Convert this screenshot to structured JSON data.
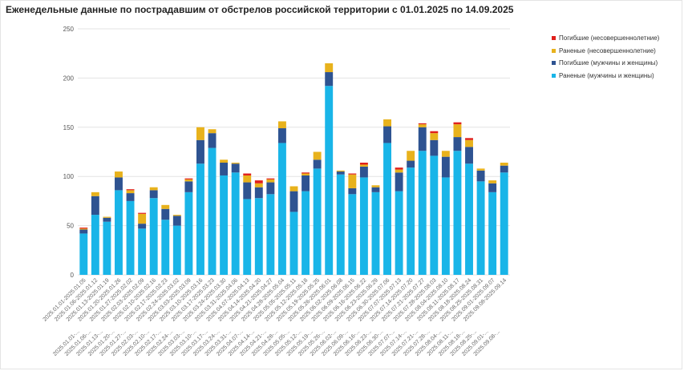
{
  "chart_data": {
    "type": "bar",
    "stacked": true,
    "title": "Еженедельные данные по пострадавшим от обстрелов российской территории с 01.01.2025 по 14.09.2025",
    "xlabel": "",
    "ylabel": "",
    "ylim": [
      0,
      250
    ],
    "yticks": [
      0,
      50,
      100,
      150,
      200,
      250
    ],
    "grid": true,
    "legend_position": "top-right",
    "categories": [
      "2025.01.01-2025.01.05",
      "2025.01.06-2025.01.12",
      "2025.01.13-2025.01.19",
      "2025.01.20-2025.01.26",
      "2025.01.27-2025.02.02",
      "2025.02.03-2025.02.09",
      "2025.02.10-2025.02.16",
      "2025.02.17-2025.02.23",
      "2025.02.24-2025.03.02",
      "2025.03.03-2025.03.09",
      "2025.03.10-2025.03.16",
      "2025.03.17-2025.03.23",
      "2025.03.24-2025.03.30",
      "2025.03.31-2025.04.06",
      "2025.04.07-2025.04.13",
      "2025.04.14-2025.04.20",
      "2025.04.21-2025.04.27",
      "2025.04.28-2025.05.04",
      "2025.05.05-2025.05.11",
      "2025.05.12-2025.05.18",
      "2025.05.19-2025.05.25",
      "2025.05.26-2025.06.01",
      "2025.06.02-2025.06.08",
      "2025.06.09-2025.06.15",
      "2025.06.16-2025.06.22",
      "2025.06.23-2025.06.29",
      "2025.06.30-2025.07.06",
      "2025.07.07-2025.07.13",
      "2025.07.14-2025.07.20",
      "2025.07.21-2025.07.27",
      "2025.07.28-2025.08.03",
      "2025.08.04-2025.08.10",
      "2025.08.11-2025.08.17",
      "2025.08.18-2025.08.24",
      "2025.08.25-2025.08.31",
      "2025.09.01-2025.09.07",
      "2025.09.08-2025.09.14"
    ],
    "tick_labels": [
      "2025.01.01-...",
      "2025.01.06-...",
      "2025.01.13-...",
      "2025.01.20-...",
      "2025.01.27-...",
      "2025.02.03-...",
      "2025.02.10-...",
      "2025.02.17-...",
      "2025.02.24-...",
      "2025.03.03-...",
      "2025.03.10-...",
      "2025.03.17-...",
      "2025.03.24-...",
      "2025.03.31-...",
      "2025.04.07-...",
      "2025.04.14-...",
      "2025.04.21-...",
      "2025.04.28-...",
      "2025.05.05-...",
      "2025.05.12-...",
      "2025.05.19-...",
      "2025.05.26-...",
      "2025.06.02-...",
      "2025.06.09-...",
      "2025.06.16-...",
      "2025.06.23-...",
      "2025.06.30-...",
      "2025.07.07-...",
      "2025.07.14-...",
      "2025.07.21-...",
      "2025.07.28-...",
      "2025.08.04-...",
      "2025.08.11-...",
      "2025.08.18-...",
      "2025.08.25-...",
      "2025.09.01-...",
      "2025.09.08-..."
    ],
    "series": [
      {
        "name": "Раненые (мужчины и женщины)",
        "color": "#19b5e8",
        "values": [
          42,
          61,
          54,
          86,
          75,
          47,
          78,
          56,
          50,
          84,
          113,
          129,
          101,
          104,
          77,
          78,
          82,
          134,
          64,
          85,
          108,
          192,
          102,
          82,
          99,
          84,
          134,
          85,
          109,
          126,
          121,
          99,
          126,
          113,
          95,
          84,
          104
        ]
      },
      {
        "name": "Погибшие (мужчины и женщины)",
        "color": "#2e5391",
        "values": [
          4,
          19,
          4,
          13,
          8,
          5,
          8,
          11,
          10,
          11,
          24,
          15,
          13,
          9,
          17,
          11,
          12,
          15,
          21,
          16,
          9,
          14,
          3,
          6,
          11,
          5,
          17,
          19,
          7,
          24,
          16,
          21,
          14,
          17,
          11,
          9,
          7
        ]
      },
      {
        "name": "Раненые (несовершеннолетние)",
        "color": "#e8b21c",
        "values": [
          1,
          4,
          1,
          6,
          3,
          10,
          3,
          4,
          1,
          2,
          13,
          4,
          3,
          1,
          7,
          4,
          3,
          7,
          5,
          2,
          8,
          9,
          1,
          14,
          2,
          2,
          7,
          3,
          10,
          3,
          7,
          6,
          13,
          7,
          2,
          3,
          3
        ]
      },
      {
        "name": "Погибшие (несовершеннолетние)",
        "color": "#e0201b",
        "values": [
          1,
          0,
          0,
          0,
          1,
          1,
          0,
          0,
          0,
          1,
          0,
          0,
          0,
          0,
          2,
          3,
          1,
          0,
          0,
          1,
          0,
          0,
          0,
          1,
          2,
          0,
          0,
          2,
          0,
          1,
          2,
          0,
          2,
          2,
          0,
          0,
          0
        ]
      }
    ],
    "legend_order": [
      "Погибшие (несовершеннолетние)",
      "Раненые (несовершеннолетние)",
      "Погибшие (мужчины и женщины)",
      "Раненые (мужчины и женщины)"
    ]
  }
}
